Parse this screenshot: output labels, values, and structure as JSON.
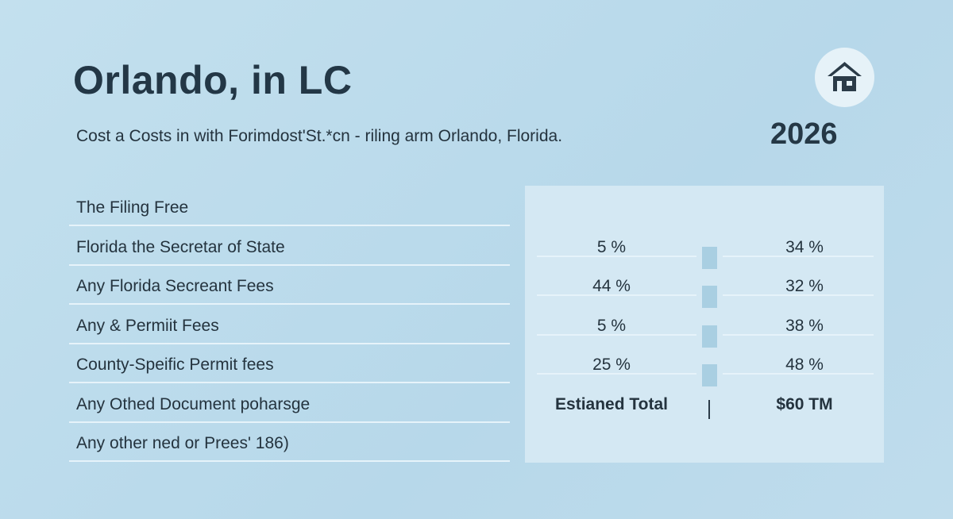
{
  "header": {
    "title": "Orlando, in LC",
    "subtitle": "Cost a Costs in with Forimdost'St.*cn - riling arm Orlando, Florida.",
    "year": "2026"
  },
  "table": {
    "labels": [
      "The Filing Free",
      "Florida the Secretar of State",
      "Any Florida Secreant Fees",
      "Any & Permiit Fees",
      "County-Speific Permit fees",
      "Any Othed Document poharsge",
      "Any other ned or Prees' 186)"
    ],
    "rows": [
      [
        "5 %",
        "34 %"
      ],
      [
        "44 %",
        "32 %"
      ],
      [
        "5 %",
        "38 %"
      ],
      [
        "25 %",
        "48 %"
      ],
      [
        "Estianed Total",
        "$60 TM"
      ]
    ]
  }
}
